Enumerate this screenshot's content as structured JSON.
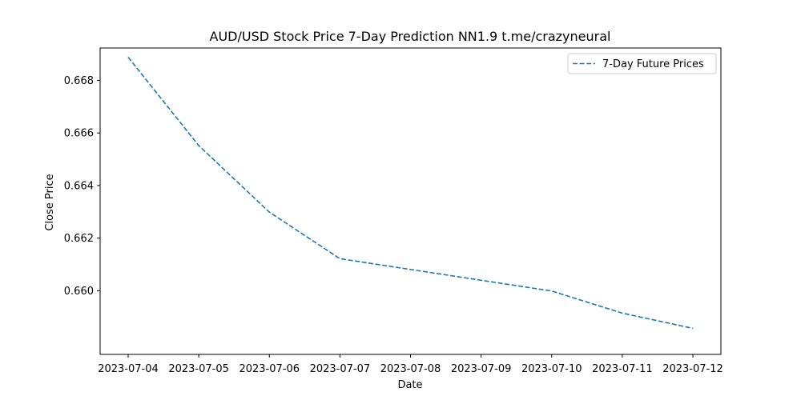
{
  "chart_data": {
    "type": "line",
    "title": "AUD/USD Stock Price 7-Day Prediction NN1.9 t.me/crazyneural",
    "xlabel": "Date",
    "ylabel": "Close Price",
    "x": [
      "2023-07-04",
      "2023-07-05",
      "2023-07-06",
      "2023-07-07",
      "2023-07-08",
      "2023-07-09",
      "2023-07-10",
      "2023-07-11",
      "2023-07-12"
    ],
    "series": [
      {
        "name": "7-Day Future Prices",
        "values": [
          0.66888,
          0.66552,
          0.66299,
          0.66122,
          0.66081,
          0.6604,
          0.65999,
          0.65915,
          0.65857
        ],
        "color": "#1f77b4",
        "style": "dashed"
      }
    ],
    "yticks": [
      "0.660",
      "0.662",
      "0.664",
      "0.666",
      "0.668"
    ],
    "ylim": [
      0.65758,
      0.66923
    ],
    "grid": false,
    "legend_position": "upper right"
  }
}
